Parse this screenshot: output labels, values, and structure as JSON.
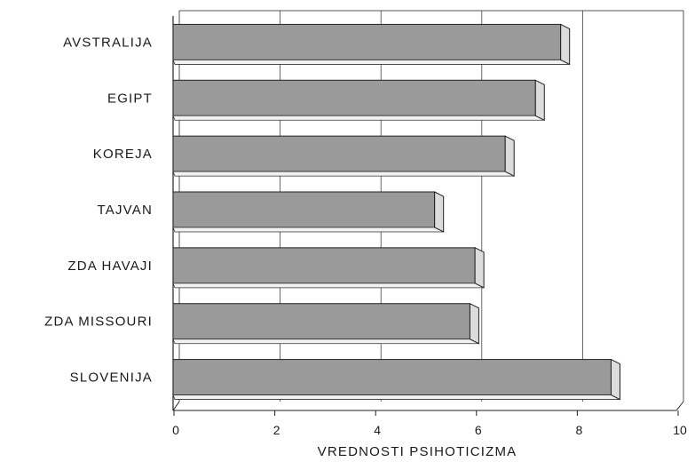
{
  "chart_data": {
    "type": "bar",
    "orientation": "horizontal",
    "categories": [
      "AVSTRALIJA",
      "EGIPT",
      "KOREJA",
      "TAJVAN",
      "ZDA HAVAJI",
      "ZDA MISSOURI",
      "SLOVENIJA"
    ],
    "values": [
      7.6,
      7.1,
      6.5,
      5.1,
      5.9,
      5.8,
      8.6
    ],
    "xlabel": "VREDNOSTI PSIHOTICIZMA",
    "ylabel": "",
    "title": "",
    "xlim": [
      0,
      10
    ],
    "xticks": [
      "0",
      "2",
      "4",
      "6",
      "8",
      "10"
    ],
    "grid": "vertical lines at 4, 6, 8",
    "bar_color": "#9a9a9a",
    "bar_top_color": "#f2f2f2",
    "bar_side_color": "#dcdcdc"
  }
}
